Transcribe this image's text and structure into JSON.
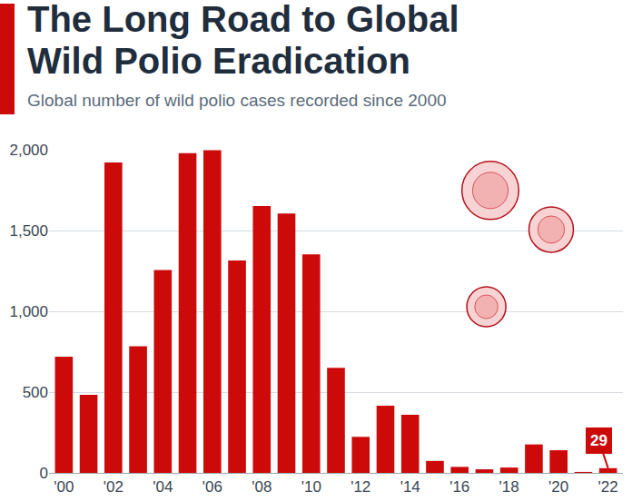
{
  "chart_data": {
    "type": "bar",
    "title": "The Long Road to Global Wild Polio Eradication",
    "subtitle": "Global number of wild polio cases recorded since 2000",
    "categories": [
      "'00",
      null,
      "'02",
      null,
      "'04",
      null,
      "'06",
      null,
      "'08",
      null,
      "'10",
      null,
      "'12",
      null,
      "'14",
      null,
      "'16",
      null,
      "'18",
      null,
      "'20",
      null,
      "'22"
    ],
    "values": [
      719,
      483,
      1922,
      784,
      1255,
      1979,
      1997,
      1315,
      1651,
      1606,
      1352,
      650,
      223,
      416,
      359,
      74,
      37,
      22,
      33,
      176,
      140,
      6,
      29
    ],
    "color": "#cc0a0a",
    "ylim": [
      0,
      2000
    ],
    "yticks": [
      0,
      500,
      {
        "value": 1000,
        "label": "1,000"
      },
      {
        "value": 1500,
        "label": "1,500"
      },
      {
        "value": 2000,
        "label": "2,000"
      }
    ],
    "grid": true,
    "annotations": [
      {
        "text": "29",
        "x": 22
      }
    ]
  }
}
